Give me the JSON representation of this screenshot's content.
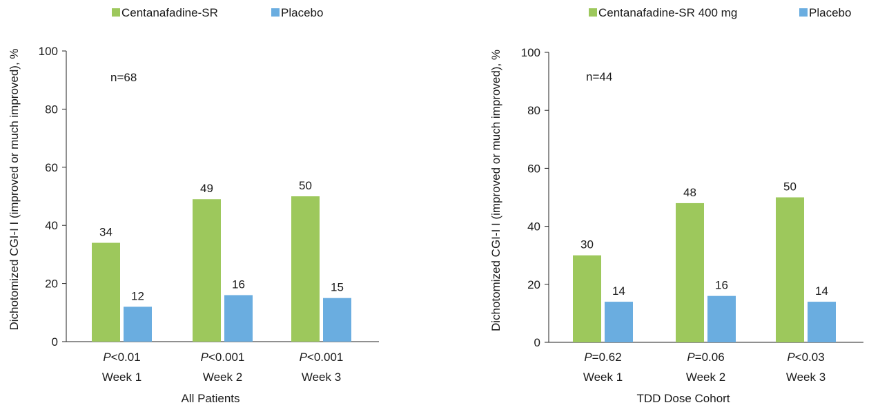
{
  "chart_data": [
    {
      "type": "bar",
      "categories": [
        "Week 1",
        "Week 2",
        "Week 3"
      ],
      "pvalue_labels": [
        {
          "p": "P",
          "rest": "<0.01"
        },
        {
          "p": "P",
          "rest": "<0.001"
        },
        {
          "p": "P",
          "rest": "<0.001"
        }
      ],
      "series": [
        {
          "name": "Centanafadine-SR",
          "color": "#9dc85c",
          "values": [
            34,
            49,
            50
          ]
        },
        {
          "name": "Placebo",
          "color": "#6aade0",
          "values": [
            12,
            16,
            15
          ]
        }
      ],
      "xlabel": "All Patients",
      "ylabel": "Dichotomized CGI-I I (improved or much improved), %",
      "ylim": [
        0,
        100
      ],
      "yticks": [
        0,
        20,
        40,
        60,
        80,
        100
      ],
      "annotation": "n=68",
      "legend_position": "top",
      "grid": false
    },
    {
      "type": "bar",
      "categories": [
        "Week 1",
        "Week 2",
        "Week 3"
      ],
      "pvalue_labels": [
        {
          "p": "P",
          "rest": "=0.62"
        },
        {
          "p": "P",
          "rest": "=0.06"
        },
        {
          "p": "P",
          "rest": "<0.03"
        }
      ],
      "series": [
        {
          "name": "Centanafadine-SR 400 mg",
          "color": "#9dc85c",
          "values": [
            30,
            48,
            50
          ]
        },
        {
          "name": "Placebo",
          "color": "#6aade0",
          "values": [
            14,
            16,
            14
          ]
        }
      ],
      "xlabel": "TDD Dose Cohort",
      "ylabel": "Dichotomized CGI-I I (improved or much improved), %",
      "ylim": [
        0,
        100
      ],
      "yticks": [
        0,
        20,
        40,
        60,
        80,
        100
      ],
      "annotation": "n=44",
      "legend_position": "top",
      "grid": false
    }
  ]
}
